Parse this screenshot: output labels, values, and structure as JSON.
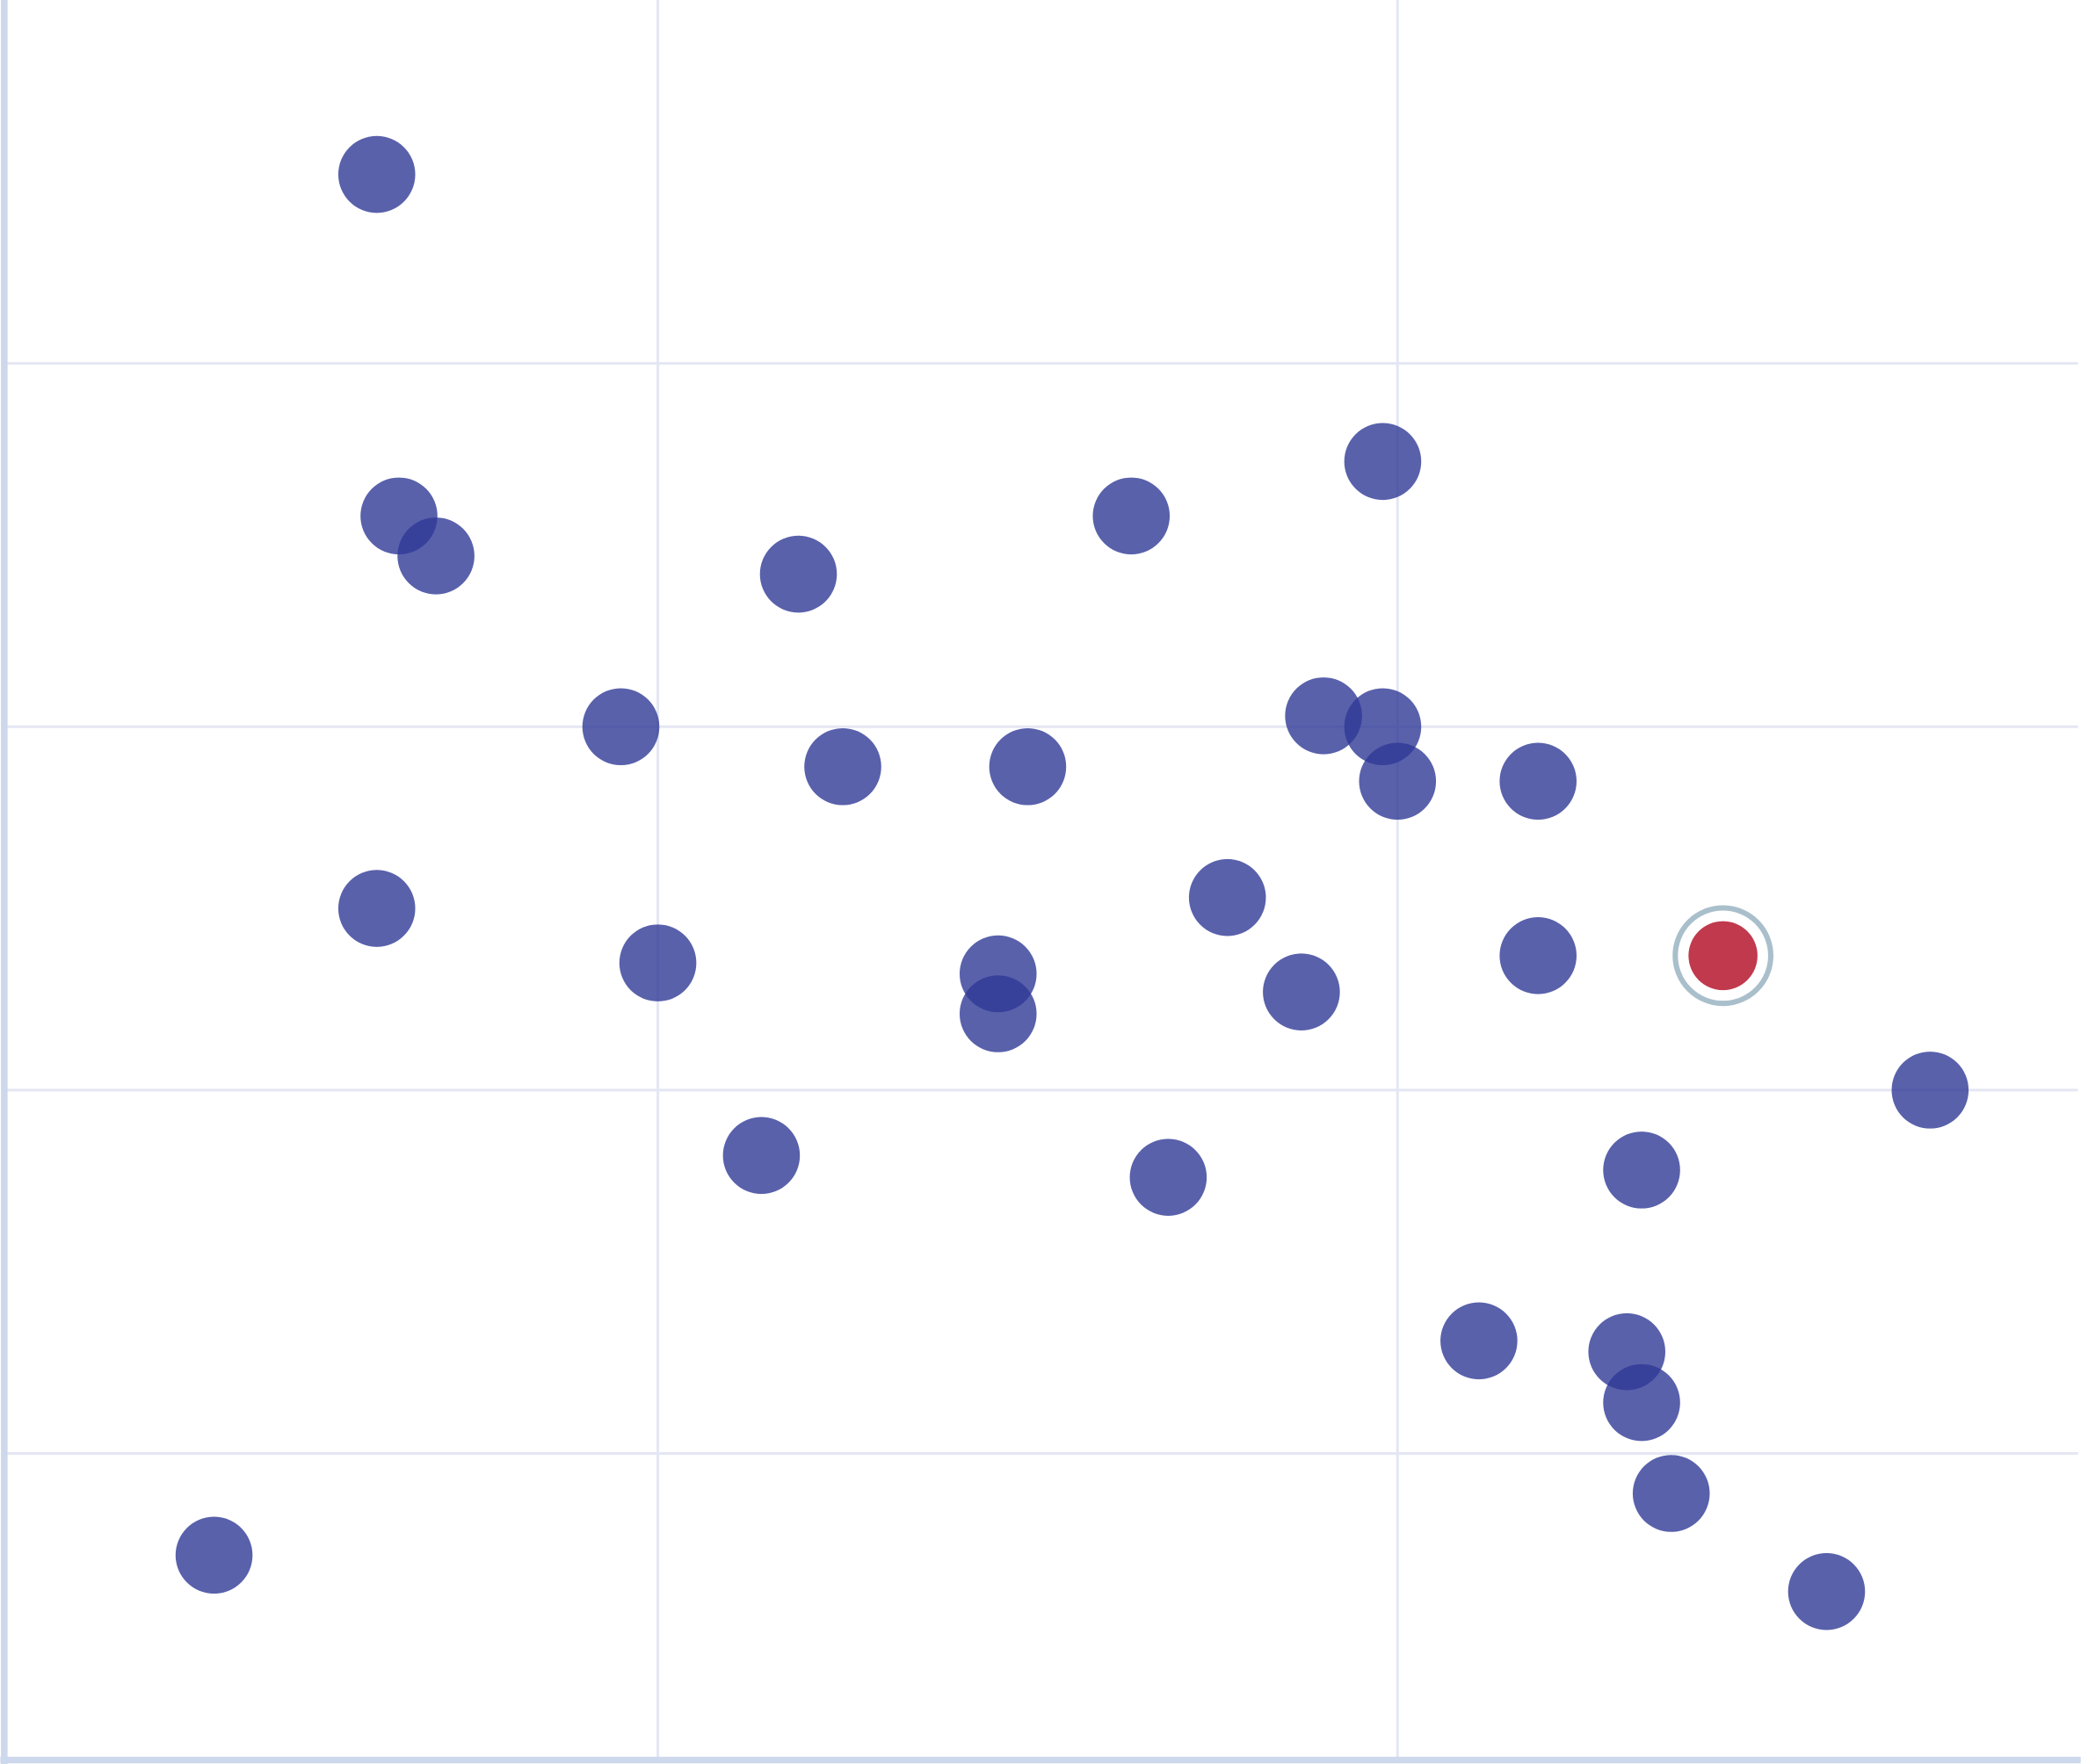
{
  "chart_data": {
    "type": "scatter",
    "title": "",
    "xlabel": "",
    "ylabel": "",
    "xlim": [
      0.12,
      2.92
    ],
    "ylim": [
      0.16,
      5.0
    ],
    "x_gridlines": [
      1,
      2
    ],
    "y_gridlines": [
      1,
      2,
      3,
      4
    ],
    "grid": true,
    "legend": "none",
    "colors": {
      "point": "#2f3996",
      "highlight": "#c0394d",
      "highlight_ring": "#a9bfcb",
      "axis": "#cdd8ec",
      "grid": "#e4e7f3"
    },
    "points": [
      {
        "x": 0.62,
        "y": 4.52
      },
      {
        "x": 0.65,
        "y": 3.58
      },
      {
        "x": 0.7,
        "y": 3.47
      },
      {
        "x": 1.19,
        "y": 3.42
      },
      {
        "x": 1.64,
        "y": 3.58
      },
      {
        "x": 1.98,
        "y": 3.73
      },
      {
        "x": 0.95,
        "y": 3.0
      },
      {
        "x": 1.25,
        "y": 2.89
      },
      {
        "x": 1.5,
        "y": 2.89
      },
      {
        "x": 1.9,
        "y": 3.03
      },
      {
        "x": 1.98,
        "y": 3.0
      },
      {
        "x": 2.0,
        "y": 2.85
      },
      {
        "x": 2.19,
        "y": 2.85
      },
      {
        "x": 0.62,
        "y": 2.5
      },
      {
        "x": 1.0,
        "y": 2.35
      },
      {
        "x": 1.46,
        "y": 2.32
      },
      {
        "x": 1.46,
        "y": 2.21
      },
      {
        "x": 1.77,
        "y": 2.53
      },
      {
        "x": 1.87,
        "y": 2.27
      },
      {
        "x": 2.19,
        "y": 2.37
      },
      {
        "x": 2.72,
        "y": 2.0
      },
      {
        "x": 1.14,
        "y": 1.82
      },
      {
        "x": 1.69,
        "y": 1.76
      },
      {
        "x": 2.33,
        "y": 1.78
      },
      {
        "x": 2.11,
        "y": 1.31
      },
      {
        "x": 2.31,
        "y": 1.28
      },
      {
        "x": 2.33,
        "y": 1.14
      },
      {
        "x": 2.37,
        "y": 0.89
      },
      {
        "x": 0.4,
        "y": 0.72
      },
      {
        "x": 2.58,
        "y": 0.62
      }
    ],
    "highlighted_point": {
      "x": 2.44,
      "y": 2.37
    }
  }
}
